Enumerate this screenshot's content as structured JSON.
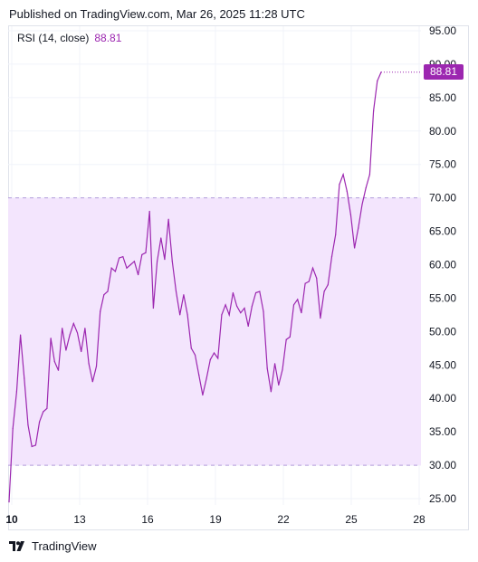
{
  "header": {
    "published": "Published on TradingView.com, Mar 26, 2025 11:28 UTC"
  },
  "legend": {
    "label": "RSI (14, close)",
    "value": "88.81"
  },
  "footer": {
    "brand": "TradingView"
  },
  "colors": {
    "line": "#9c27b0",
    "band_fill": "#f3e5fd",
    "band_border": "#b39ddb",
    "grid": "#f0f3fa"
  },
  "chart_data": {
    "type": "line",
    "title": "",
    "xlabel": "",
    "ylabel": "",
    "ylim": [
      24,
      96
    ],
    "yticks": [
      "95.00",
      "90.00",
      "85.00",
      "80.00",
      "75.00",
      "70.00",
      "65.00",
      "60.00",
      "55.00",
      "50.00",
      "45.00",
      "40.00",
      "35.00",
      "30.00",
      "25.00"
    ],
    "xticks": [
      "10",
      "13",
      "16",
      "19",
      "22",
      "25",
      "28"
    ],
    "overbought": 70,
    "oversold": 30,
    "last_value_label": "88.81",
    "series": [
      {
        "values": [
          24.5,
          35.5,
          41,
          49.5,
          43,
          36,
          32.8,
          33,
          36.5,
          38,
          38.5,
          49,
          45.5,
          44.2,
          50.5,
          47.2,
          49.5,
          51.2,
          49.8,
          47,
          50.5,
          45.2,
          42.5,
          44.8,
          53,
          55.5,
          56,
          59.5,
          59,
          61,
          61.2,
          59.5,
          60,
          60.5,
          58.5,
          61.5,
          61.8,
          68,
          53.5,
          60.5,
          64,
          60.8,
          66.8,
          60.5,
          56,
          52.5,
          55.5,
          52.5,
          47.5,
          46.5,
          43.5,
          40.5,
          43,
          45.8,
          46.8,
          46,
          52.5,
          54,
          52.5,
          55.8,
          53.8,
          52.8,
          53.5,
          50.8,
          53.8,
          55.8,
          56,
          53,
          44.5,
          41,
          45.2,
          42,
          44.3,
          48.8,
          49.2,
          54,
          54.8,
          52.8,
          57.2,
          57.5,
          59.5,
          58,
          52,
          56,
          57,
          61.2,
          64.5,
          72,
          73.5,
          71,
          67.5,
          62.5,
          65.5,
          69,
          71.5,
          73.5,
          83,
          87.5,
          88.81
        ]
      }
    ]
  }
}
